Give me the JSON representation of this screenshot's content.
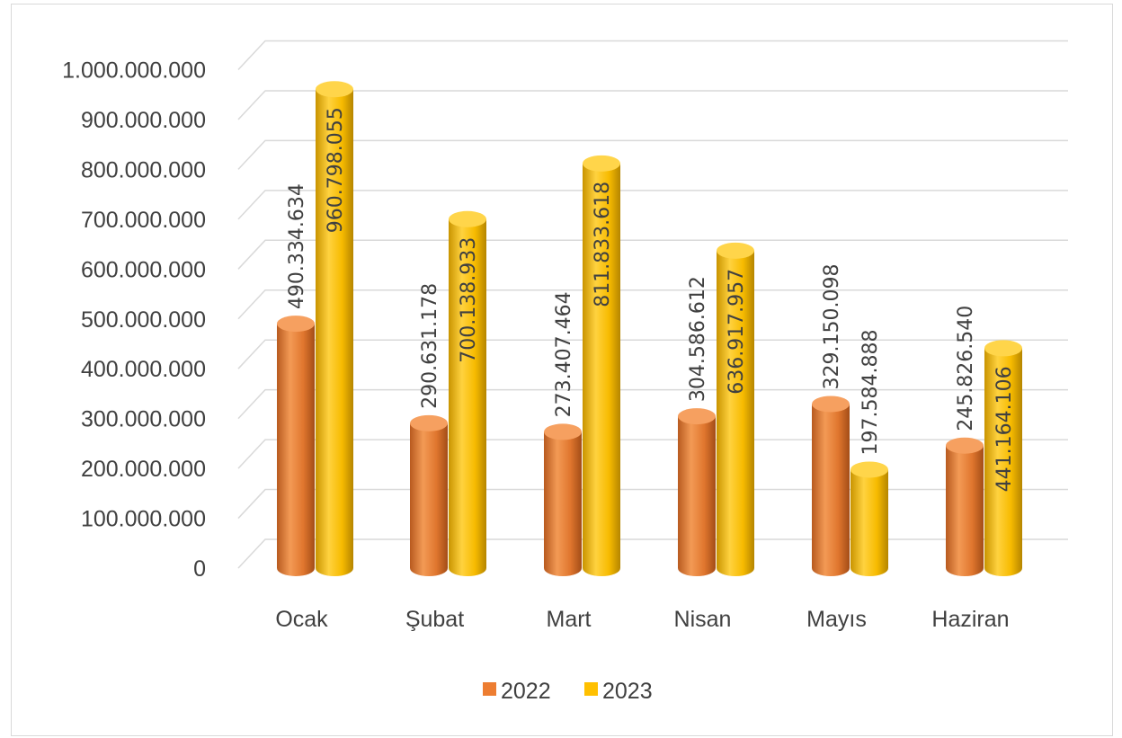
{
  "chart_data": {
    "type": "bar",
    "style": "3d-cylinder",
    "title": "",
    "xlabel": "",
    "ylabel": "",
    "ylim": [
      0,
      1000000000
    ],
    "yticks": [
      0,
      100000000,
      200000000,
      300000000,
      400000000,
      500000000,
      600000000,
      700000000,
      800000000,
      900000000,
      1000000000
    ],
    "ytick_labels": [
      "0",
      "100.000.000",
      "200.000.000",
      "300.000.000",
      "400.000.000",
      "500.000.000",
      "600.000.000",
      "700.000.000",
      "800.000.000",
      "900.000.000",
      "1.000.000.000"
    ],
    "categories": [
      "Ocak",
      "Şubat",
      "Mart",
      "Nisan",
      "Mayıs",
      "Haziran"
    ],
    "series": [
      {
        "name": "2022",
        "color": "#ED7D31",
        "values": [
          490334634,
          290631178,
          273407464,
          304586612,
          329150098,
          245826540
        ],
        "labels": [
          "490.334.634",
          "290.631.178",
          "273.407.464",
          "304.586.612",
          "329.150.098",
          "245.826.540"
        ]
      },
      {
        "name": "2023",
        "color": "#FFC000",
        "values": [
          960798055,
          700138933,
          811833618,
          636917957,
          197584888,
          441164106
        ],
        "labels": [
          "960.798.055",
          "700.138.933",
          "811.833.618",
          "636.917.957",
          "197.584.888",
          "441.164.106"
        ]
      }
    ],
    "grid": true,
    "legend": "bottom"
  }
}
